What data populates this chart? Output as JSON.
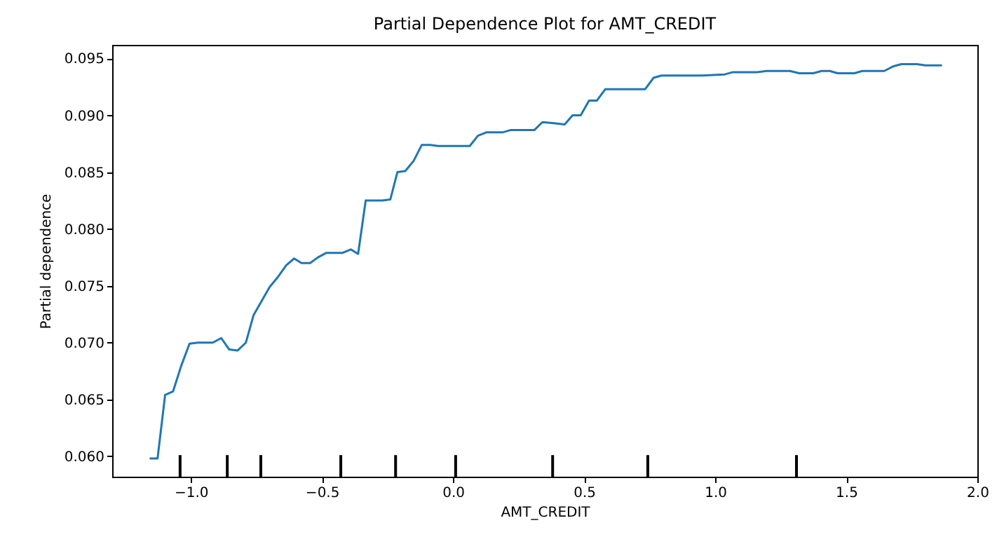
{
  "chart_data": {
    "type": "line",
    "title": "Partial Dependence Plot for AMT_CREDIT",
    "xlabel": "AMT_CREDIT",
    "ylabel": "Partial dependence",
    "xlim": [
      -1.3,
      2.0
    ],
    "xticks": [
      {
        "value": -1.0,
        "label": "−1.0"
      },
      {
        "value": -0.5,
        "label": "−0.5"
      },
      {
        "value": 0,
        "label": "0.0"
      },
      {
        "value": 0.5,
        "label": "0.5"
      },
      {
        "value": 1.0,
        "label": "1.0"
      },
      {
        "value": 1.5,
        "label": "1.5"
      },
      {
        "value": 2.0,
        "label": "2.0"
      }
    ],
    "ylim": [
      0.0582,
      0.0962
    ],
    "yticks": [
      {
        "value": 0.06,
        "label": "0.060"
      },
      {
        "value": 0.065,
        "label": "0.065"
      },
      {
        "value": 0.07,
        "label": "0.070"
      },
      {
        "value": 0.075,
        "label": "0.075"
      },
      {
        "value": 0.08,
        "label": "0.080"
      },
      {
        "value": 0.085,
        "label": "0.085"
      },
      {
        "value": 0.09,
        "label": "0.090"
      },
      {
        "value": 0.095,
        "label": "0.095"
      }
    ],
    "grid": false,
    "series": [
      {
        "color": "#1f77b4",
        "x": [
          -1.157,
          -1.127,
          -1.098,
          -1.068,
          -1.036,
          -1.005,
          -0.973,
          -0.916,
          -0.884,
          -0.854,
          -0.822,
          -0.79,
          -0.761,
          -0.729,
          -0.699,
          -0.667,
          -0.636,
          -0.606,
          -0.578,
          -0.545,
          -0.515,
          -0.483,
          -0.421,
          -0.39,
          -0.362,
          -0.333,
          -0.269,
          -0.239,
          -0.212,
          -0.182,
          -0.15,
          -0.119,
          -0.087,
          -0.057,
          0.064,
          0.095,
          0.127,
          0.189,
          0.219,
          0.31,
          0.341,
          0.385,
          0.426,
          0.456,
          0.487,
          0.519,
          0.549,
          0.581,
          0.733,
          0.765,
          0.795,
          0.947,
          1.036,
          1.068,
          1.16,
          1.196,
          1.285,
          1.321,
          1.374,
          1.406,
          1.437,
          1.467,
          1.531,
          1.561,
          1.645,
          1.678,
          1.71,
          1.77,
          1.802,
          1.865
        ],
        "values": [
          0.0598,
          0.0598,
          0.0654,
          0.0657,
          0.068,
          0.0699,
          0.07,
          0.07,
          0.0704,
          0.0694,
          0.0693,
          0.07,
          0.0724,
          0.0737,
          0.0749,
          0.0758,
          0.0768,
          0.0774,
          0.077,
          0.077,
          0.0775,
          0.0779,
          0.0779,
          0.0782,
          0.0778,
          0.0825,
          0.0825,
          0.0826,
          0.085,
          0.0851,
          0.086,
          0.0874,
          0.0874,
          0.0873,
          0.0873,
          0.0882,
          0.0885,
          0.0885,
          0.0887,
          0.0887,
          0.0894,
          0.0893,
          0.0892,
          0.09,
          0.09,
          0.0913,
          0.0913,
          0.0923,
          0.0923,
          0.0933,
          0.0935,
          0.0935,
          0.0936,
          0.0938,
          0.0938,
          0.0939,
          0.0939,
          0.0937,
          0.0937,
          0.0939,
          0.0939,
          0.0937,
          0.0937,
          0.0939,
          0.0939,
          0.0943,
          0.0945,
          0.0945,
          0.0944,
          0.0944
        ]
      },
      {
        "type": "bar",
        "color": "#000000",
        "x": [
          -1.041,
          -0.861,
          -0.733,
          -0.428,
          -0.219,
          0.01,
          0.38,
          0.743,
          1.31
        ],
        "base": [
          0.0582,
          0.0582,
          0.0582,
          0.0582,
          0.0582,
          0.0582,
          0.0582,
          0.0582,
          0.0582
        ],
        "values": [
          0.0019,
          0.0019,
          0.0019,
          0.0019,
          0.0019,
          0.0019,
          0.0019,
          0.0019,
          0.0019
        ]
      }
    ]
  }
}
